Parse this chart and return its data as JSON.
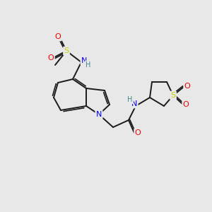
{
  "bg_color": "#e8e8e8",
  "atom_colors": {
    "C": "#000000",
    "N": "#0000ee",
    "O": "#ee0000",
    "S": "#cccc00",
    "H": "#448888"
  },
  "bond_color": "#1a1a1a",
  "figsize": [
    3.0,
    3.0
  ],
  "dpi": 100
}
